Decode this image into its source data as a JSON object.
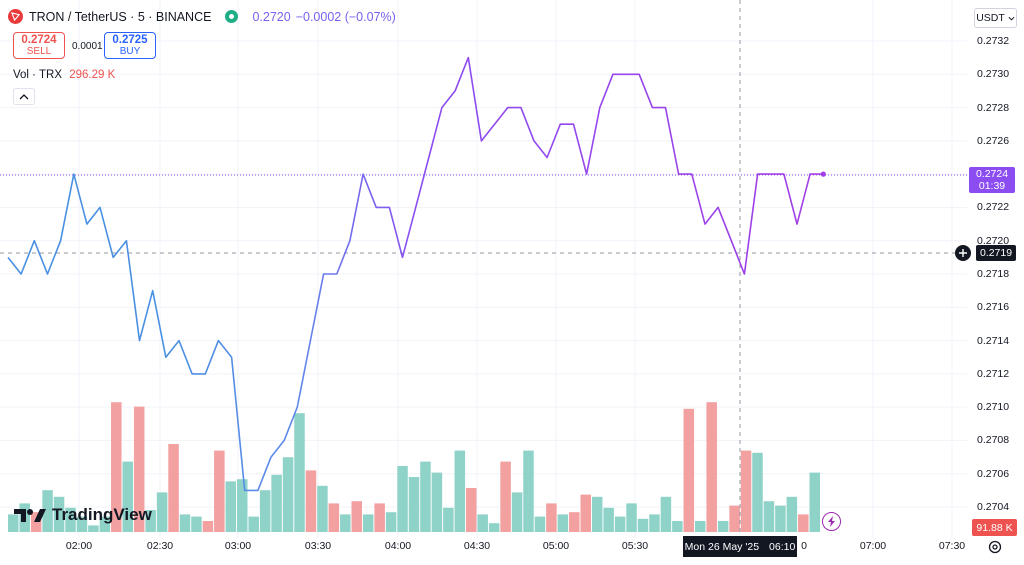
{
  "legend": {
    "title": "TRON / TetherUS · 5 · BINANCE",
    "last": "0.2720",
    "change": "−0.0002 (−0.07%)"
  },
  "trade": {
    "sell_price": "0.2724",
    "sell_label": "SELL",
    "spread": "0.0001",
    "buy_price": "0.2725",
    "buy_label": "BUY"
  },
  "volume_legend": {
    "label": "Vol · TRX",
    "value": "296.29 K"
  },
  "currency": "USDT",
  "price_axis_labels": [
    "0.2732",
    "0.2730",
    "0.2728",
    "0.2726",
    "0.2724",
    "0.2722",
    "0.2720",
    "0.2718",
    "0.2716",
    "0.2714",
    "0.2712",
    "0.2710",
    "0.2708",
    "0.2706",
    "0.2704"
  ],
  "time_axis_labels": [
    "02:00",
    "02:30",
    "03:00",
    "03:30",
    "04:00",
    "04:30",
    "05:00",
    "05:30",
    "07:00",
    "07:30"
  ],
  "time_axis_partial": "0",
  "current_price_tag": {
    "price": "0.2724",
    "countdown": "01:39"
  },
  "cursor_price": "0.2719",
  "cursor_time": {
    "date": "Mon 26 May '25",
    "time": "06:10"
  },
  "volume_tag": "91.88 K",
  "watermark": "TradingView",
  "colors": {
    "line_start": "#4a90e2",
    "line_end": "#a23de6",
    "volume_up": "#8fd3c8",
    "volume_down": "#f2a0a0",
    "price_tag": "#8b4df2",
    "sell": "#ef5350",
    "buy": "#2962ff"
  },
  "chart_data": {
    "type": "line",
    "series": [
      {
        "values": [
          0.2719,
          0.2718,
          0.272,
          0.2718,
          0.272,
          0.2724,
          0.2721,
          0.2722,
          0.2719,
          0.272,
          0.2714,
          0.2717,
          0.2713,
          0.2714,
          0.2712,
          0.2712,
          0.2714,
          0.2713,
          0.2705,
          0.2705,
          0.2707,
          0.2708,
          0.271,
          0.2714,
          0.2718,
          0.2718,
          0.272,
          0.2724,
          0.2722,
          0.2722,
          0.2719,
          0.2722,
          0.2725,
          0.2728,
          0.2729,
          0.2731,
          0.2726,
          0.2727,
          0.2728,
          0.2728,
          0.2726,
          0.2725,
          0.2727,
          0.2727,
          0.2724,
          0.2728,
          0.273,
          0.273,
          0.273,
          0.2728,
          0.2728,
          0.2724,
          0.2724,
          0.2721,
          0.2722,
          0.272,
          0.2718,
          0.2724,
          0.2724,
          0.2724,
          0.2721,
          0.2724,
          0.2724
        ]
      }
    ],
    "volume": [
      0.8,
      1.3,
      0.9,
      1.9,
      1.6,
      1.1,
      0.7,
      0.3,
      0.7,
      5.9,
      3.2,
      5.7,
      1.0,
      1.8,
      4.0,
      0.8,
      0.7,
      0.5,
      3.7,
      2.3,
      2.4,
      0.7,
      1.9,
      2.6,
      3.4,
      5.4,
      2.8,
      2.1,
      1.3,
      0.8,
      1.4,
      0.8,
      1.3,
      0.9,
      3.0,
      2.5,
      3.2,
      2.7,
      1.1,
      3.7,
      2.0,
      0.8,
      0.4,
      3.2,
      1.8,
      3.7,
      0.7,
      1.3,
      0.8,
      0.9,
      1.7,
      1.6,
      1.1,
      0.7,
      1.3,
      0.6,
      0.8,
      1.6,
      0.5,
      5.6,
      0.5,
      5.9,
      0.5,
      1.2,
      3.7,
      3.6,
      1.4,
      1.2,
      1.6,
      0.8,
      2.7
    ],
    "volume_down": [
      0,
      0,
      1,
      0,
      0,
      0,
      0,
      0,
      0,
      1,
      0,
      1,
      0,
      0,
      1,
      0,
      0,
      1,
      1,
      0,
      0,
      0,
      0,
      0,
      0,
      0,
      1,
      0,
      1,
      0,
      1,
      0,
      1,
      0,
      0,
      0,
      0,
      0,
      0,
      0,
      1,
      0,
      0,
      1,
      0,
      0,
      0,
      1,
      0,
      1,
      1,
      0,
      0,
      0,
      0,
      0,
      0,
      0,
      0,
      1,
      0,
      1,
      0,
      1,
      1,
      0,
      0,
      0,
      0,
      1,
      0
    ],
    "ylim": [
      0.2703,
      0.2733
    ]
  }
}
